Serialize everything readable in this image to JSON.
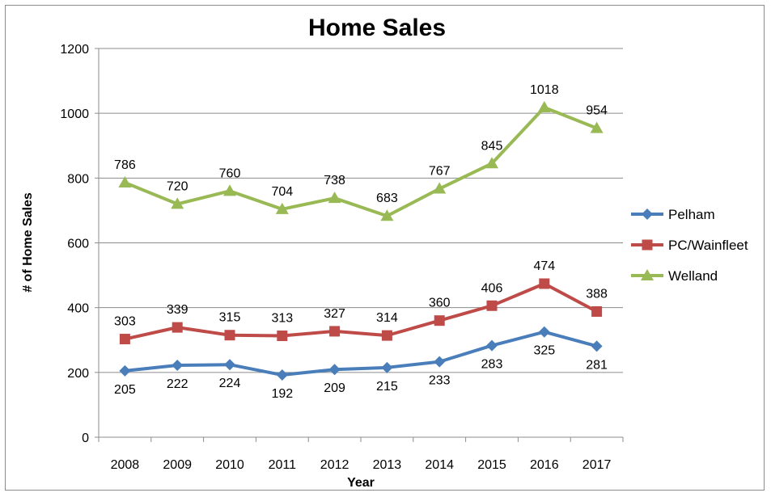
{
  "chart_data": {
    "type": "line",
    "title": "Home Sales",
    "xlabel": "Year",
    "ylabel": "# of Home Sales",
    "categories": [
      "2008",
      "2009",
      "2010",
      "2011",
      "2012",
      "2013",
      "2014",
      "2015",
      "2016",
      "2017"
    ],
    "ylim": [
      0,
      1200
    ],
    "yticks": [
      0,
      200,
      400,
      600,
      800,
      1000,
      1200
    ],
    "grid": true,
    "legend_position": "right",
    "series": [
      {
        "name": "Pelham",
        "color": "#4a7ebb",
        "marker": "diamond",
        "label_position": "below",
        "values": [
          205,
          222,
          224,
          192,
          209,
          215,
          233,
          283,
          325,
          281
        ]
      },
      {
        "name": "PC/Wainfleet",
        "color": "#be4b48",
        "marker": "square",
        "label_position": "above",
        "values": [
          303,
          339,
          315,
          313,
          327,
          314,
          360,
          406,
          474,
          388
        ]
      },
      {
        "name": "Welland",
        "color": "#98b954",
        "marker": "triangle",
        "label_position": "above",
        "values": [
          786,
          720,
          760,
          704,
          738,
          683,
          767,
          845,
          1018,
          954
        ]
      }
    ]
  }
}
